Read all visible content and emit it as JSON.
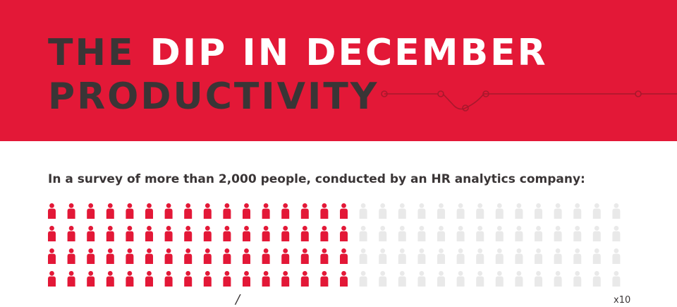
{
  "header": {
    "title_part1": "THE ",
    "title_part2": "DIP IN DECEMBER",
    "title_part3": "PRODUCTIVITY"
  },
  "subtitle": "In a survey of more than 2,000 people, conducted by an HR analytics company:",
  "pictogram": {
    "rows": 4,
    "icons_per_row": 30,
    "highlighted_per_row": 16,
    "multiplier_label": "x10",
    "mark": "/",
    "colors": {
      "highlight": "#e31837",
      "base": "#e9e9e9"
    }
  },
  "colors": {
    "brand_red": "#e31837",
    "dark_text": "#3a3536"
  },
  "icons": {
    "person": "person-icon",
    "circuit": "circuit-line-icon"
  }
}
